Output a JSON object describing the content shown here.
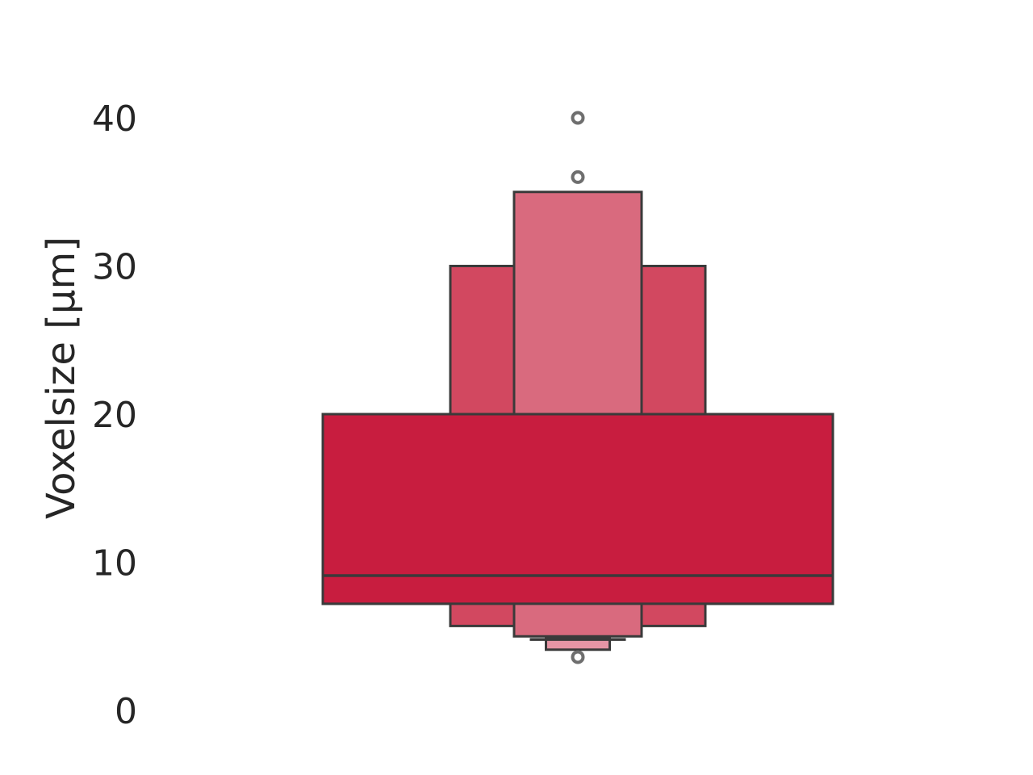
{
  "chart_data": {
    "type": "boxen",
    "title": "",
    "xlabel": "",
    "ylabel": "Voxelsize [µm]",
    "ylim": [
      0,
      44
    ],
    "yticks": [
      0,
      10,
      20,
      30,
      40
    ],
    "ytick_labels": [
      "0",
      "10",
      "20",
      "30",
      "40"
    ],
    "grid": false,
    "colors": {
      "level_1": "#c81d3f",
      "level_2": "#d24860",
      "level_3": "#d96a7e",
      "level_4": "#e695a5",
      "edge": "#3a3a3a",
      "outlier": "#6e6e6e"
    },
    "median": 9.1,
    "levels": [
      {
        "name": "box-level-1",
        "low": 7.2,
        "high": 20.0,
        "width_frac": 1.0
      },
      {
        "name": "box-level-2",
        "low": 5.7,
        "high": 30.0,
        "width_frac": 0.5
      },
      {
        "name": "box-level-3",
        "low": 5.0,
        "high": 35.0,
        "width_frac": 0.25
      },
      {
        "name": "box-level-4",
        "low": 4.1,
        "high": 4.9,
        "width_frac": 0.125
      }
    ],
    "outliers": [
      40.0,
      36.0,
      3.6
    ]
  }
}
